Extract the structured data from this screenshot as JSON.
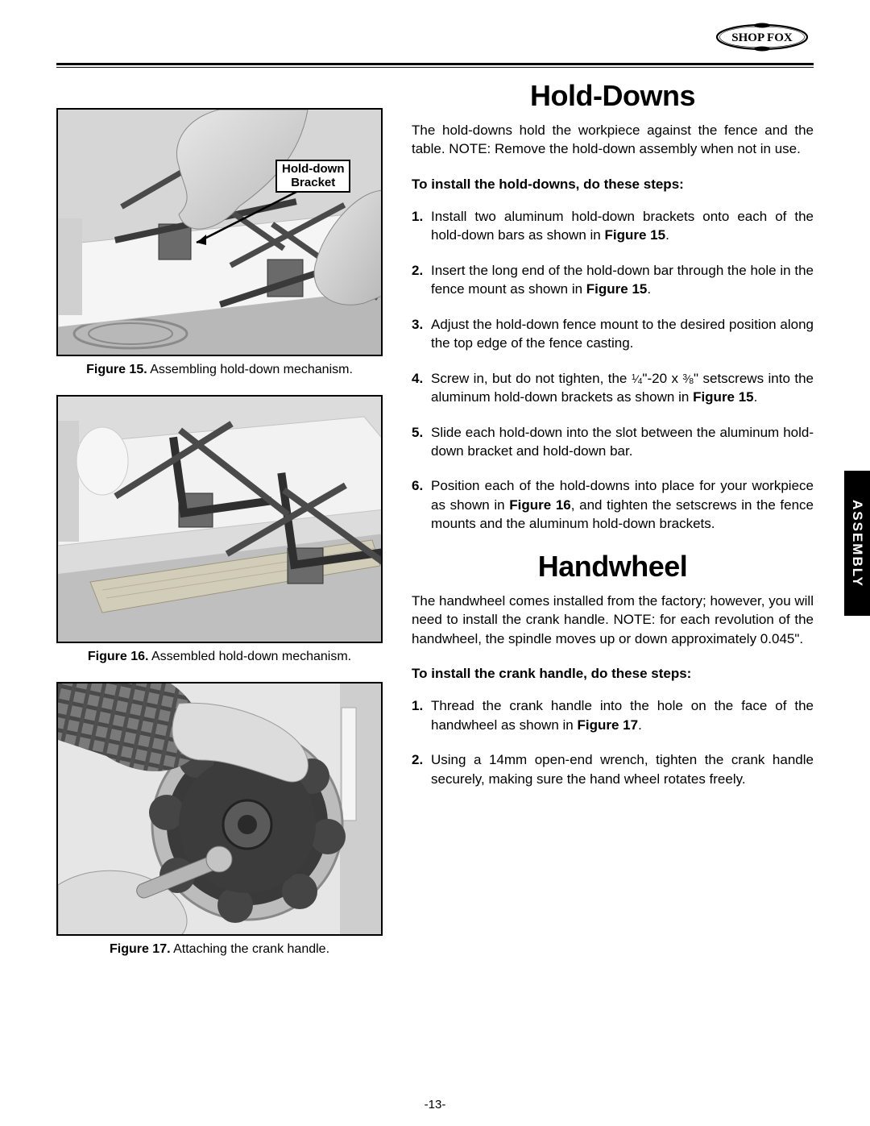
{
  "logo_text": "SHOP FOX",
  "side_tab": "ASSEMBLY",
  "page_number": "-13-",
  "figures": {
    "f15": {
      "label": "Figure 15.",
      "caption": "Assembling hold-down mechanism.",
      "callout": "Hold-down\nBracket"
    },
    "f16": {
      "label": "Figure 16.",
      "caption": "Assembled hold-down mechanism."
    },
    "f17": {
      "label": "Figure 17.",
      "caption": "Attaching the crank handle."
    }
  },
  "sections": {
    "holddowns": {
      "title": "Hold-Downs",
      "intro": "The hold-downs hold the workpiece against the fence and the table. NOTE: Remove the hold-down assembly when not in use.",
      "lead": "To install the hold-downs, do these steps:",
      "steps": [
        "Install two aluminum hold-down brackets onto each of the hold-down bars as shown in <span class='b'>Figure 15</span>.",
        "Insert the long end of the hold-down bar through the hole in the fence mount as shown in <span class='b'>Figure 15</span>.",
        "Adjust the hold-down fence mount to the desired position along the top edge of the fence casting.",
        "Screw in, but do not tighten, the <span class='frac'><sup>1</sup>⁄<sub>4</sub></span>\"-20 x <span class='frac'><sup>3</sup>⁄<sub>8</sub></span>\" setscrews into the aluminum hold-down brackets as shown in <span class='b'>Figure 15</span>.",
        "Slide each hold-down into the slot between the aluminum hold-down bracket and hold-down bar.",
        "Position each of the hold-downs into place for your workpiece as shown in <span class='b'>Figure 16</span>, and tighten the setscrews in the fence mounts and the aluminum hold-down brackets."
      ]
    },
    "handwheel": {
      "title": "Handwheel",
      "intro": "The handwheel comes installed from the factory; however, you will need to install the crank handle. NOTE: for each revolution of the handwheel, the spindle moves up or down approximately 0.045\".",
      "lead": "To install the crank handle, do these steps:",
      "steps": [
        "Thread the crank handle into the hole on the face of the handwheel as shown in <span class='b'>Figure 17</span>.",
        "Using a 14mm open-end wrench, tighten the crank handle securely, making sure the hand wheel rotates freely."
      ]
    }
  }
}
